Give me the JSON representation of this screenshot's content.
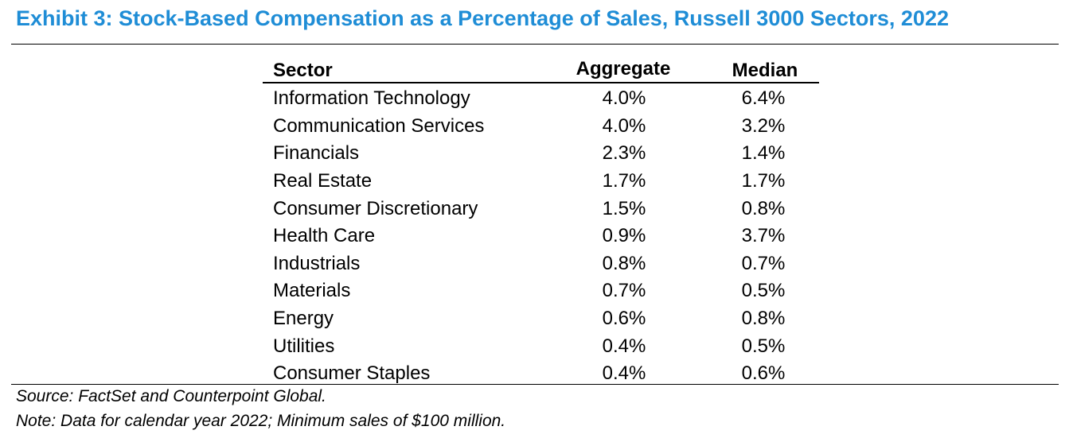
{
  "title": "Exhibit 3: Stock-Based Compensation as a Percentage of Sales, Russell 3000 Sectors, 2022",
  "colors": {
    "title": "#1f8dd6",
    "rules": "#000000"
  },
  "table": {
    "headers": {
      "sector": "Sector",
      "aggregate": "Aggregate",
      "median": "Median"
    },
    "rows": [
      {
        "sector": "Information Technology",
        "aggregate": "4.0%",
        "median": "6.4%"
      },
      {
        "sector": "Communication Services",
        "aggregate": "4.0%",
        "median": "3.2%"
      },
      {
        "sector": "Financials",
        "aggregate": "2.3%",
        "median": "1.4%"
      },
      {
        "sector": "Real Estate",
        "aggregate": "1.7%",
        "median": "1.7%"
      },
      {
        "sector": "Consumer Discretionary",
        "aggregate": "1.5%",
        "median": "0.8%"
      },
      {
        "sector": "Health Care",
        "aggregate": "0.9%",
        "median": "3.7%"
      },
      {
        "sector": "Industrials",
        "aggregate": "0.8%",
        "median": "0.7%"
      },
      {
        "sector": "Materials",
        "aggregate": "0.7%",
        "median": "0.5%"
      },
      {
        "sector": "Energy",
        "aggregate": "0.6%",
        "median": "0.8%"
      },
      {
        "sector": "Utilities",
        "aggregate": "0.4%",
        "median": "0.5%"
      },
      {
        "sector": "Consumer Staples",
        "aggregate": "0.4%",
        "median": "0.6%"
      }
    ]
  },
  "footer": {
    "source": "Source: FactSet and Counterpoint Global.",
    "note": "Note: Data for calendar year 2022; Minimum sales of $100 million."
  }
}
